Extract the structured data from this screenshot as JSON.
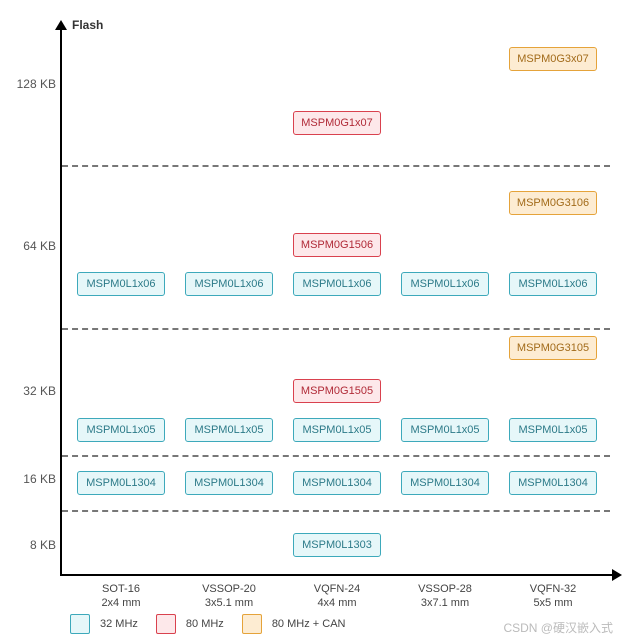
{
  "axes": {
    "y_title": "Flash",
    "y_ticks": {
      "t128": "128 KB",
      "t64": "64 KB",
      "t32": "32 KB",
      "t16": "16 KB",
      "t8": "8 KB"
    },
    "x_ticks": {
      "x1": {
        "pkg": "SOT-16",
        "size": "2x4 mm"
      },
      "x2": {
        "pkg": "VSSOP-20",
        "size": "3x5.1 mm"
      },
      "x3": {
        "pkg": "VQFN-24",
        "size": "4x4 mm"
      },
      "x4": {
        "pkg": "VSSOP-28",
        "size": "3x7.1 mm"
      },
      "x5": {
        "pkg": "VQFN-32",
        "size": "5x5 mm"
      }
    }
  },
  "colors": {
    "blue_fill": "#e6f7f9",
    "blue_border": "#3da9bb",
    "red_fill": "#fde8ea",
    "red_border": "#d9414e",
    "orange_fill": "#fdecd2",
    "orange_border": "#e5a33a",
    "axis": "#000000",
    "grid_dash": "#777777",
    "bg": "#ffffff"
  },
  "chips": {
    "g3x07": "MSPM0G3x07",
    "g1x07": "MSPM0G1x07",
    "g3106": "MSPM0G3106",
    "g1506": "MSPM0G1506",
    "l1x06": "MSPM0L1x06",
    "g3105": "MSPM0G3105",
    "g1505": "MSPM0G1505",
    "l1x05": "MSPM0L1x05",
    "l1304": "MSPM0L1304",
    "l1303": "MSPM0L1303"
  },
  "legend": {
    "blue": "32 MHz",
    "red": "80 MHz",
    "orange": "80 MHz + CAN"
  },
  "watermark": "CSDN @硬汉嵌入式"
}
